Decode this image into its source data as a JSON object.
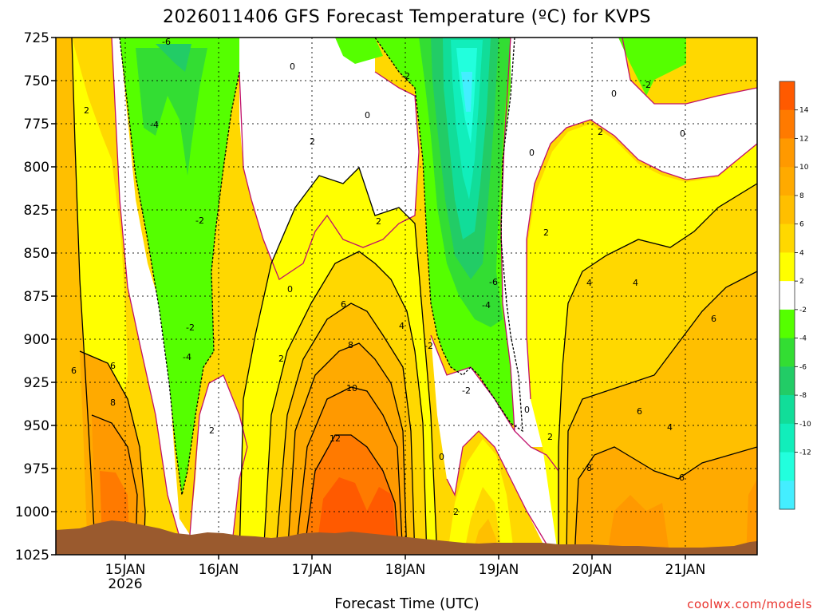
{
  "chart_data": {
    "type": "heatmap",
    "title": "2026011406 GFS Forecast Temperature (ºC) for KVPS",
    "xlabel": "Forecast Time (UTC)",
    "ylabel": "",
    "credit": "coolwx.com/models",
    "y_ticks": [
      "725",
      "750",
      "775",
      "800",
      "825",
      "850",
      "875",
      "900",
      "925",
      "950",
      "975",
      "1000",
      "1025"
    ],
    "ylim": [
      725,
      1025
    ],
    "x_ticks": [
      "15JAN",
      "16JAN",
      "17JAN",
      "18JAN",
      "19JAN",
      "20JAN",
      "21JAN"
    ],
    "x_year": "2026",
    "colorbar": {
      "levels": [
        -14,
        -12,
        -10,
        -8,
        -6,
        -4,
        -2,
        2,
        4,
        6,
        8,
        10,
        12,
        14,
        16
      ],
      "labels": [
        "14",
        "12",
        "10",
        "8",
        "6",
        "4",
        "2",
        "-2",
        "-4",
        "-6",
        "-8",
        "-10",
        "-12"
      ],
      "colors": {
        "c14": "#ff5a00",
        "c12": "#ff7a00",
        "c10": "#ff9900",
        "c8": "#ffaa00",
        "c6": "#ffbf00",
        "c4": "#ffd800",
        "c2": "#ffff00",
        "c0": "#ffffff",
        "cm2": "#55ff00",
        "cm4": "#33dd33",
        "cm6": "#22cc66",
        "cm8": "#11dd99",
        "cm10": "#11eebb",
        "cm12": "#22ffdd",
        "cm14": "#44eeff"
      }
    },
    "contour_labels": [
      "0",
      "0",
      "0",
      "0",
      "0",
      "0",
      "0",
      "0",
      "2",
      "2",
      "2",
      "2",
      "2",
      "2",
      "2",
      "2",
      "2",
      "-2",
      "-2",
      "-2",
      "-2",
      "-2",
      "-2",
      "-4",
      "-4",
      "-4",
      "-6",
      "-6",
      "4",
      "4",
      "4",
      "4",
      "6",
      "6",
      "6",
      "6",
      "6",
      "6",
      "8",
      "8",
      "8",
      "10",
      "12"
    ]
  }
}
